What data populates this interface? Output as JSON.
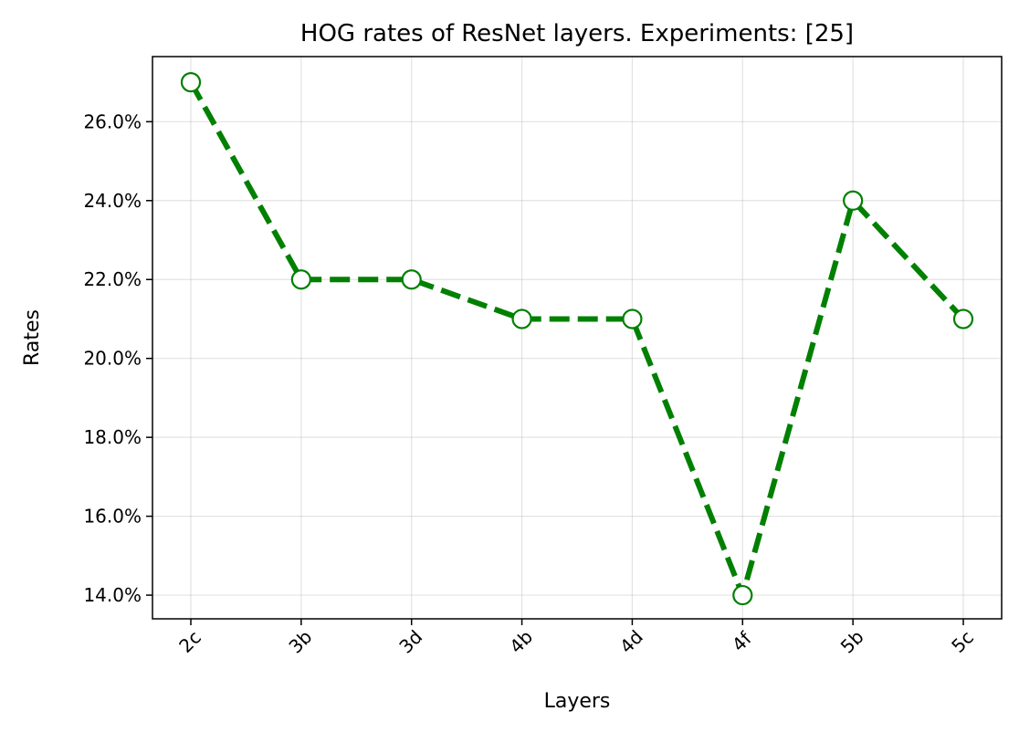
{
  "chart_data": {
    "type": "line",
    "title": "HOG rates of ResNet layers. Experiments: [25]",
    "xlabel": "Layers",
    "ylabel": "Rates",
    "categories": [
      "2c",
      "3b",
      "3d",
      "4b",
      "4d",
      "4f",
      "5b",
      "5c"
    ],
    "series": [
      {
        "values": [
          27.0,
          22.0,
          22.0,
          21.0,
          21.0,
          14.0,
          24.0,
          21.0
        ],
        "color": "#008000",
        "line_style": "dashed",
        "marker": "hollow-circle"
      }
    ],
    "ylim": [
      13.4,
      27.65
    ],
    "yticks": [
      14,
      16,
      18,
      20,
      22,
      24,
      26
    ],
    "ytick_labels": [
      "14.0%",
      "16.0%",
      "18.0%",
      "20.0%",
      "22.0%",
      "24.0%",
      "26.0%"
    ],
    "grid": true,
    "legend": "none"
  }
}
